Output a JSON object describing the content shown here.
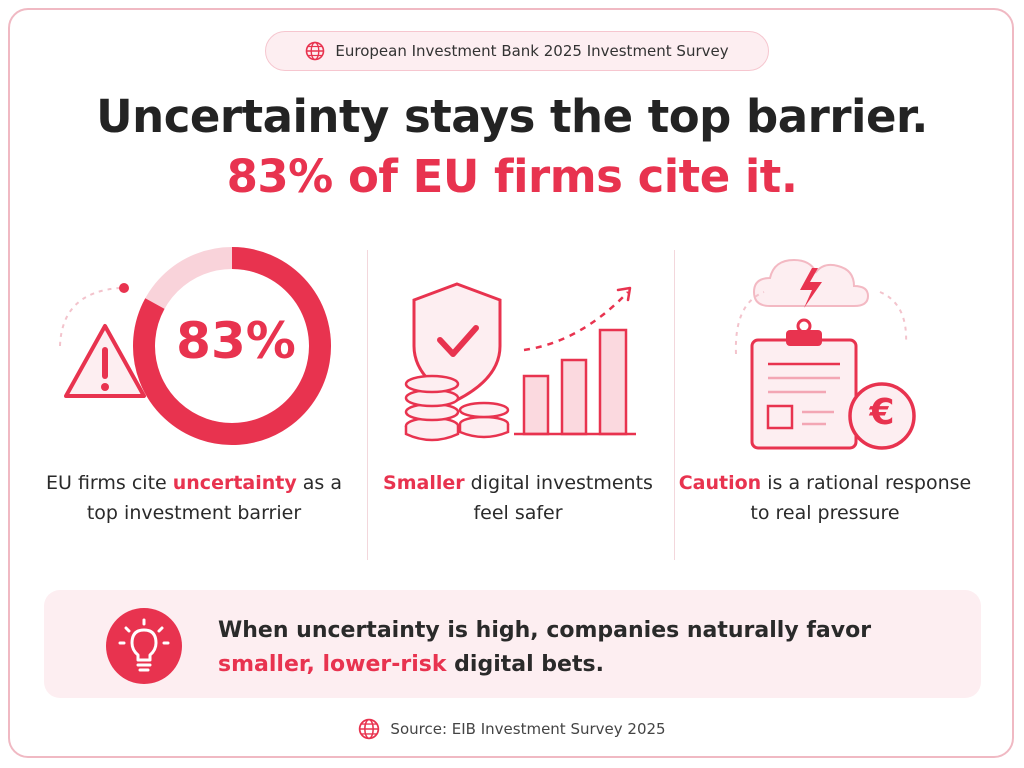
{
  "header": {
    "pill_label": "European Investment Bank 2025 Investment Survey",
    "title_line1": "Uncertainty stays the top barrier.",
    "title_line2": "83% of EU firms cite it."
  },
  "columns": [
    {
      "stat": "83%",
      "stat_fraction": 0.83,
      "text_pre": "EU firms cite ",
      "text_highlight": "uncertainty",
      "text_post": " as a top investment barrier",
      "icon": "warning-triangle-icon"
    },
    {
      "text_highlight": "Smaller",
      "text_post": " digital investments feel safer",
      "icon": "shield-coins-bar-chart-icon"
    },
    {
      "text_highlight": "Caution",
      "text_post": " is a rational response to real pressure",
      "icon": "clipboard-euro-storm-icon",
      "euro_symbol": "€"
    }
  ],
  "banner": {
    "text_pre": "When uncertainty is high, companies naturally favor ",
    "text_highlight": "smaller, lower-risk",
    "text_post": " digital bets.",
    "icon": "lightbulb-icon"
  },
  "footer": {
    "source": "Source: EIB Investment Survey 2025",
    "icon": "globe-icon"
  },
  "colors": {
    "accent": "#e8334f",
    "accent_light": "#fdeef1",
    "border": "#f0b9c3",
    "text": "#262626"
  }
}
